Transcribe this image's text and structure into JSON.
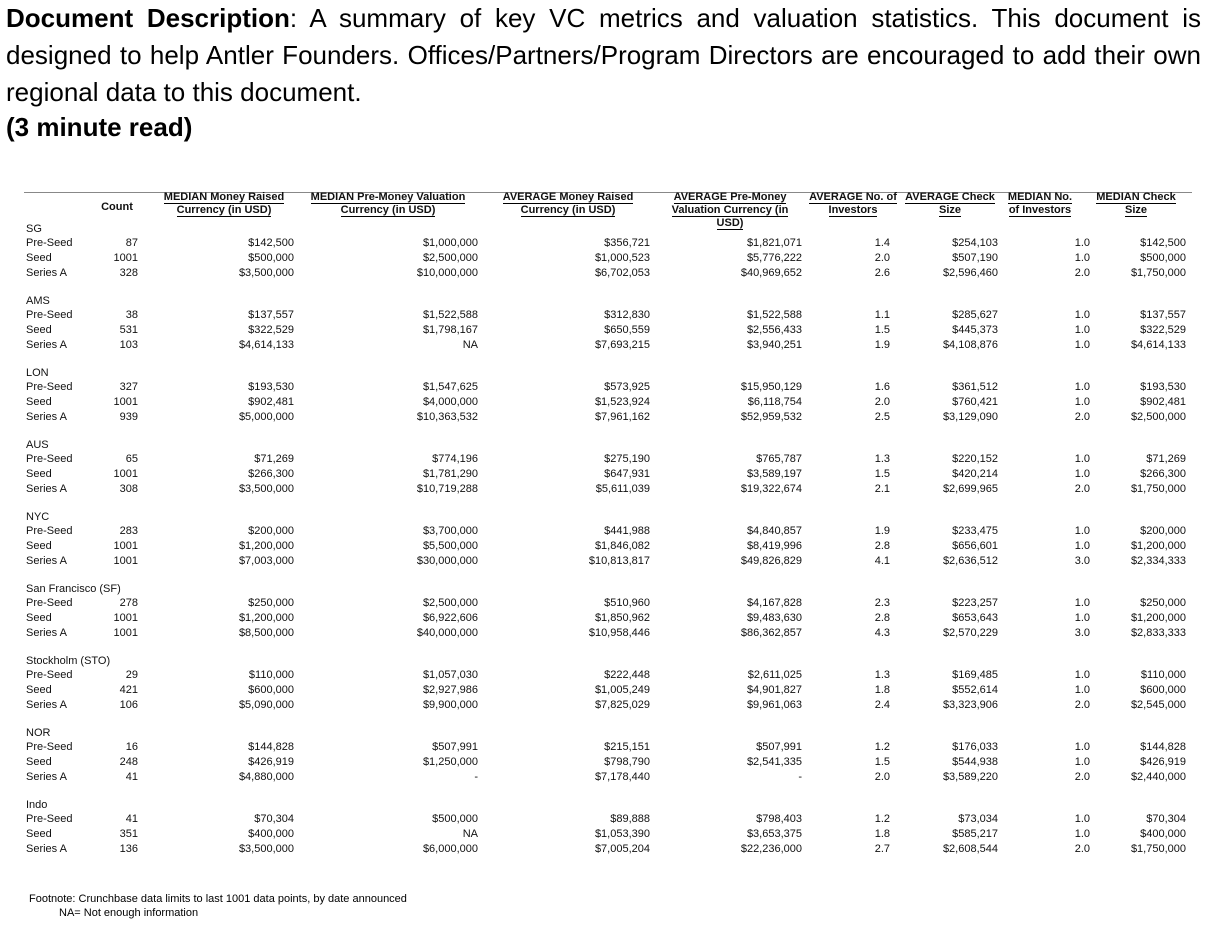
{
  "description": {
    "label": "Document Description",
    "text": ": A summary of key VC metrics and valuation statistics. This document is designed to help Antler Founders. Offices/Partners/Program Directors are encouraged to add their own regional data to this document.",
    "read_time": "(3 minute read)"
  },
  "table": {
    "headers": [
      "Count",
      "MEDIAN Money Raised Currency (in USD)",
      "MEDIAN Pre-Money Valuation Currency (in USD)",
      "AVERAGE Money Raised Currency (in USD)",
      "AVERAGE Pre-Money Valuation Currency (in USD)",
      "AVERAGE No. of Investors",
      "AVERAGE Check Size",
      "MEDIAN No. of Investors",
      "MEDIAN Check Size"
    ],
    "groups": [
      {
        "name": "SG",
        "rows": [
          [
            "Pre-Seed",
            "87",
            "$142,500",
            "$1,000,000",
            "$356,721",
            "$1,821,071",
            "1.4",
            "$254,103",
            "1.0",
            "$142,500"
          ],
          [
            "Seed",
            "1001",
            "$500,000",
            "$2,500,000",
            "$1,000,523",
            "$5,776,222",
            "2.0",
            "$507,190",
            "1.0",
            "$500,000"
          ],
          [
            "Series A",
            "328",
            "$3,500,000",
            "$10,000,000",
            "$6,702,053",
            "$40,969,652",
            "2.6",
            "$2,596,460",
            "2.0",
            "$1,750,000"
          ]
        ]
      },
      {
        "name": "AMS",
        "rows": [
          [
            "Pre-Seed",
            "38",
            "$137,557",
            "$1,522,588",
            "$312,830",
            "$1,522,588",
            "1.1",
            "$285,627",
            "1.0",
            "$137,557"
          ],
          [
            "Seed",
            "531",
            "$322,529",
            "$1,798,167",
            "$650,559",
            "$2,556,433",
            "1.5",
            "$445,373",
            "1.0",
            "$322,529"
          ],
          [
            "Series A",
            "103",
            "$4,614,133",
            "NA",
            "$7,693,215",
            "$3,940,251",
            "1.9",
            "$4,108,876",
            "1.0",
            "$4,614,133"
          ]
        ]
      },
      {
        "name": "LON",
        "rows": [
          [
            "Pre-Seed",
            "327",
            "$193,530",
            "$1,547,625",
            "$573,925",
            "$15,950,129",
            "1.6",
            "$361,512",
            "1.0",
            "$193,530"
          ],
          [
            "Seed",
            "1001",
            "$902,481",
            "$4,000,000",
            "$1,523,924",
            "$6,118,754",
            "2.0",
            "$760,421",
            "1.0",
            "$902,481"
          ],
          [
            "Series A",
            "939",
            "$5,000,000",
            "$10,363,532",
            "$7,961,162",
            "$52,959,532",
            "2.5",
            "$3,129,090",
            "2.0",
            "$2,500,000"
          ]
        ]
      },
      {
        "name": "AUS",
        "rows": [
          [
            "Pre-Seed",
            "65",
            "$71,269",
            "$774,196",
            "$275,190",
            "$765,787",
            "1.3",
            "$220,152",
            "1.0",
            "$71,269"
          ],
          [
            "Seed",
            "1001",
            "$266,300",
            "$1,781,290",
            "$647,931",
            "$3,589,197",
            "1.5",
            "$420,214",
            "1.0",
            "$266,300"
          ],
          [
            "Series A",
            "308",
            "$3,500,000",
            "$10,719,288",
            "$5,611,039",
            "$19,322,674",
            "2.1",
            "$2,699,965",
            "2.0",
            "$1,750,000"
          ]
        ]
      },
      {
        "name": "NYC",
        "rows": [
          [
            "Pre-Seed",
            "283",
            "$200,000",
            "$3,700,000",
            "$441,988",
            "$4,840,857",
            "1.9",
            "$233,475",
            "1.0",
            "$200,000"
          ],
          [
            "Seed",
            "1001",
            "$1,200,000",
            "$5,500,000",
            "$1,846,082",
            "$8,419,996",
            "2.8",
            "$656,601",
            "1.0",
            "$1,200,000"
          ],
          [
            "Series A",
            "1001",
            "$7,003,000",
            "$30,000,000",
            "$10,813,817",
            "$49,826,829",
            "4.1",
            "$2,636,512",
            "3.0",
            "$2,334,333"
          ]
        ]
      },
      {
        "name": "San Francisco (SF)",
        "rows": [
          [
            "Pre-Seed",
            "278",
            "$250,000",
            "$2,500,000",
            "$510,960",
            "$4,167,828",
            "2.3",
            "$223,257",
            "1.0",
            "$250,000"
          ],
          [
            "Seed",
            "1001",
            "$1,200,000",
            "$6,922,606",
            "$1,850,962",
            "$9,483,630",
            "2.8",
            "$653,643",
            "1.0",
            "$1,200,000"
          ],
          [
            "Series A",
            "1001",
            "$8,500,000",
            "$40,000,000",
            "$10,958,446",
            "$86,362,857",
            "4.3",
            "$2,570,229",
            "3.0",
            "$2,833,333"
          ]
        ]
      },
      {
        "name": "Stockholm (STO)",
        "rows": [
          [
            "Pre-Seed",
            "29",
            "$110,000",
            "$1,057,030",
            "$222,448",
            "$2,611,025",
            "1.3",
            "$169,485",
            "1.0",
            "$110,000"
          ],
          [
            "Seed",
            "421",
            "$600,000",
            "$2,927,986",
            "$1,005,249",
            "$4,901,827",
            "1.8",
            "$552,614",
            "1.0",
            "$600,000"
          ],
          [
            "Series A",
            "106",
            "$5,090,000",
            "$9,900,000",
            "$7,825,029",
            "$9,961,063",
            "2.4",
            "$3,323,906",
            "2.0",
            "$2,545,000"
          ]
        ]
      },
      {
        "name": "NOR",
        "rows": [
          [
            "Pre-Seed",
            "16",
            "$144,828",
            "$507,991",
            "$215,151",
            "$507,991",
            "1.2",
            "$176,033",
            "1.0",
            "$144,828"
          ],
          [
            "Seed",
            "248",
            "$426,919",
            "$1,250,000",
            "$798,790",
            "$2,541,335",
            "1.5",
            "$544,938",
            "1.0",
            "$426,919"
          ],
          [
            "Series A",
            "41",
            "$4,880,000",
            "-",
            "$7,178,440",
            "-",
            "2.0",
            "$3,589,220",
            "2.0",
            "$2,440,000"
          ]
        ]
      },
      {
        "name": "Indo",
        "rows": [
          [
            "Pre-Seed",
            "41",
            "$70,304",
            "$500,000",
            "$89,888",
            "$798,403",
            "1.2",
            "$73,034",
            "1.0",
            "$70,304"
          ],
          [
            "Seed",
            "351",
            "$400,000",
            "NA",
            "$1,053,390",
            "$3,653,375",
            "1.8",
            "$585,217",
            "1.0",
            "$400,000"
          ],
          [
            "Series A",
            "136",
            "$3,500,000",
            "$6,000,000",
            "$7,005,204",
            "$22,236,000",
            "2.7",
            "$2,608,544",
            "2.0",
            "$1,750,000"
          ]
        ]
      }
    ]
  },
  "footnote": {
    "line1": "Footnote: Crunchbase data limits to last 1001 data points, by date announced",
    "line2": "NA= Not enough information"
  }
}
